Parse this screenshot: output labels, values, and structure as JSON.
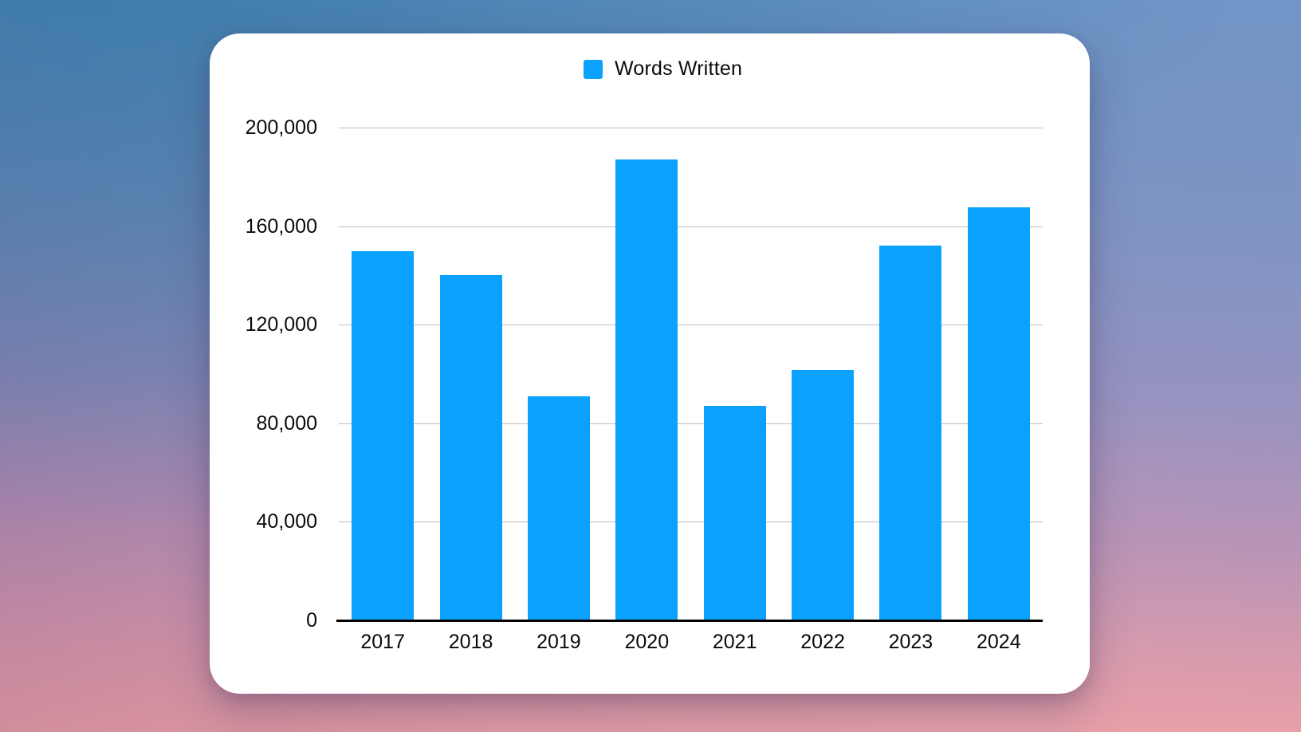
{
  "legend": {
    "label": "Words Written"
  },
  "colors": {
    "bar": "#0BA1FF",
    "gridline": "#BCBCBC",
    "axis": "#000000",
    "text": "#0A0A0A",
    "card_background": "#FFFFFF",
    "background_top_left": "#3B7FB0",
    "background_top_right": "#7B9BC7",
    "background_bottom_left": "#BD84AA",
    "background_bottom_right": "#ECA0A6"
  },
  "chart_data": {
    "type": "bar",
    "title": "",
    "xlabel": "",
    "ylabel": "",
    "categories": [
      "2017",
      "2018",
      "2019",
      "2020",
      "2021",
      "2022",
      "2023",
      "2024"
    ],
    "series": [
      {
        "name": "Words Written",
        "values": [
          150000,
          140000,
          91000,
          187000,
          87000,
          101500,
          152000,
          167500
        ]
      }
    ],
    "ylim": [
      0,
      200000
    ],
    "yticks": [
      0,
      40000,
      80000,
      120000,
      160000,
      200000
    ],
    "ytick_labels": [
      "0",
      "40,000",
      "80,000",
      "120,000",
      "160,000",
      "200,000"
    ],
    "grid": true,
    "legend_position": "top-center",
    "bar_color": "#0BA1FF"
  }
}
